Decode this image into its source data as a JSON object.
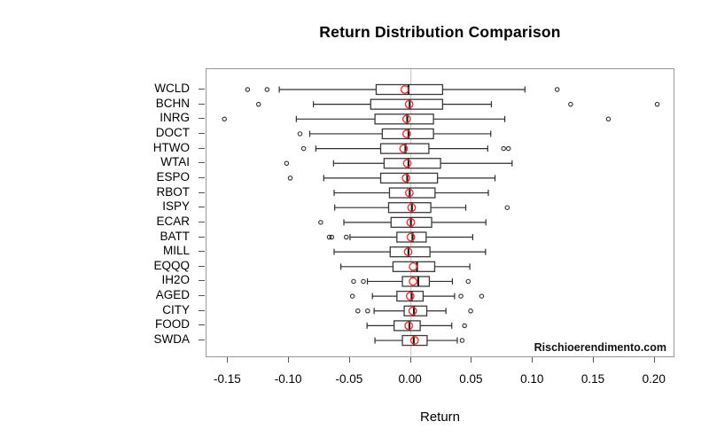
{
  "title": "Return Distribution Comparison",
  "x_axis_title": "Return",
  "watermark": "Rischioerendimento.com",
  "colors": {
    "mean_marker": "#e8312a",
    "box_stroke": "#3a3a3a",
    "whisker_stroke": "#2f2f2f",
    "outlier_stroke": "#2f2f2f",
    "plot_border": "#999999",
    "zero_line": "#cccccc",
    "background": "#ffffff"
  },
  "chart_data": {
    "type": "boxplot",
    "orientation": "horizontal",
    "title": "Return Distribution Comparison",
    "xlabel": "Return",
    "ylabel": "",
    "grid": false,
    "zero_reference_line": 0,
    "mean_marker": "open red circle",
    "outlier_marker": "open black circle",
    "xlim": [
      -0.1677,
      0.2169
    ],
    "x_ticks": [
      -0.15,
      -0.1,
      -0.05,
      0.0,
      0.05,
      0.1,
      0.15,
      0.2
    ],
    "x_tick_labels": [
      "-0.15",
      "-0.10",
      "-0.05",
      "0.00",
      "0.05",
      "0.10",
      "0.15",
      "0.20"
    ],
    "series": [
      {
        "label": "WCLD",
        "whisker_low": -0.108,
        "q1": -0.0285,
        "median": -0.002,
        "mean": -0.005,
        "q3": 0.026,
        "whisker_high": 0.0935,
        "outliers": [
          -0.134,
          -0.118,
          0.12
        ]
      },
      {
        "label": "BCHN",
        "whisker_low": -0.08,
        "q1": -0.033,
        "median": -0.001,
        "mean": -0.0015,
        "q3": 0.026,
        "whisker_high": 0.066,
        "outliers": [
          -0.125,
          0.131,
          0.202
        ]
      },
      {
        "label": "INRG",
        "whisker_low": -0.094,
        "q1": -0.0295,
        "median": -0.003,
        "mean": -0.0035,
        "q3": 0.0185,
        "whisker_high": 0.077,
        "outliers": [
          -0.153,
          0.162
        ]
      },
      {
        "label": "DOCT",
        "whisker_low": -0.083,
        "q1": -0.0235,
        "median": -0.002,
        "mean": -0.0035,
        "q3": 0.0185,
        "whisker_high": 0.0655,
        "outliers": [
          -0.091
        ]
      },
      {
        "label": "HTWO",
        "whisker_low": -0.078,
        "q1": -0.0248,
        "median": -0.0045,
        "mean": -0.006,
        "q3": 0.0147,
        "whisker_high": 0.063,
        "outliers": [
          -0.088,
          0.076,
          0.08
        ]
      },
      {
        "label": "WTAI",
        "whisker_low": -0.0635,
        "q1": -0.022,
        "median": -0.002,
        "mean": -0.003,
        "q3": 0.0243,
        "whisker_high": 0.083,
        "outliers": [
          -0.102
        ]
      },
      {
        "label": "ESPO",
        "whisker_low": -0.0715,
        "q1": -0.0248,
        "median": -0.003,
        "mean": -0.004,
        "q3": 0.0218,
        "whisker_high": 0.069,
        "outliers": [
          -0.099
        ]
      },
      {
        "label": "RBOT",
        "whisker_low": -0.063,
        "q1": -0.0176,
        "median": -0.001,
        "mean": -0.0013,
        "q3": 0.0198,
        "whisker_high": 0.0635,
        "outliers": []
      },
      {
        "label": "ISPY",
        "whisker_low": -0.0625,
        "q1": -0.0183,
        "median": 0.0008,
        "mean": 0.0006,
        "q3": 0.0163,
        "whisker_high": 0.045,
        "outliers": [
          0.079
        ]
      },
      {
        "label": "ECAR",
        "whisker_low": -0.055,
        "q1": -0.0163,
        "median": 0.0,
        "mean": -0.0001,
        "q3": 0.017,
        "whisker_high": 0.0615,
        "outliers": [
          -0.074
        ]
      },
      {
        "label": "BATT",
        "whisker_low": -0.05,
        "q1": -0.0115,
        "median": 0.0013,
        "mean": 0.0,
        "q3": 0.0125,
        "whisker_high": 0.0507,
        "outliers": [
          -0.067,
          -0.065,
          -0.053
        ]
      },
      {
        "label": "MILL",
        "whisker_low": -0.063,
        "q1": -0.017,
        "median": -0.002,
        "mean": -0.0023,
        "q3": 0.0156,
        "whisker_high": 0.0612,
        "outliers": []
      },
      {
        "label": "EQQQ",
        "whisker_low": -0.0575,
        "q1": -0.0147,
        "median": 0.005,
        "mean": 0.0018,
        "q3": 0.0195,
        "whisker_high": 0.0483,
        "outliers": []
      },
      {
        "label": "IH2O",
        "whisker_low": -0.0357,
        "q1": -0.007,
        "median": 0.006,
        "mean": 0.0018,
        "q3": 0.0151,
        "whisker_high": 0.034,
        "outliers": [
          -0.047,
          -0.039,
          0.047
        ]
      },
      {
        "label": "AGED",
        "whisker_low": -0.0316,
        "q1": -0.0115,
        "median": 0.0006,
        "mean": -0.0006,
        "q3": 0.01,
        "whisker_high": 0.0358,
        "outliers": [
          -0.048,
          0.041,
          0.058
        ]
      },
      {
        "label": "CITY",
        "whisker_low": -0.0302,
        "q1": -0.0055,
        "median": 0.0025,
        "mean": 0.0015,
        "q3": 0.013,
        "whisker_high": 0.0287,
        "outliers": [
          -0.0435,
          -0.0355,
          0.049
        ]
      },
      {
        "label": "FOOD",
        "whisker_low": -0.036,
        "q1": -0.0138,
        "median": -0.0012,
        "mean": -0.0018,
        "q3": 0.0076,
        "whisker_high": 0.0335,
        "outliers": [
          0.044
        ]
      },
      {
        "label": "SWDA",
        "whisker_low": -0.0295,
        "q1": -0.007,
        "median": 0.0023,
        "mean": 0.003,
        "q3": 0.0133,
        "whisker_high": 0.038,
        "outliers": [
          0.042
        ]
      }
    ]
  }
}
